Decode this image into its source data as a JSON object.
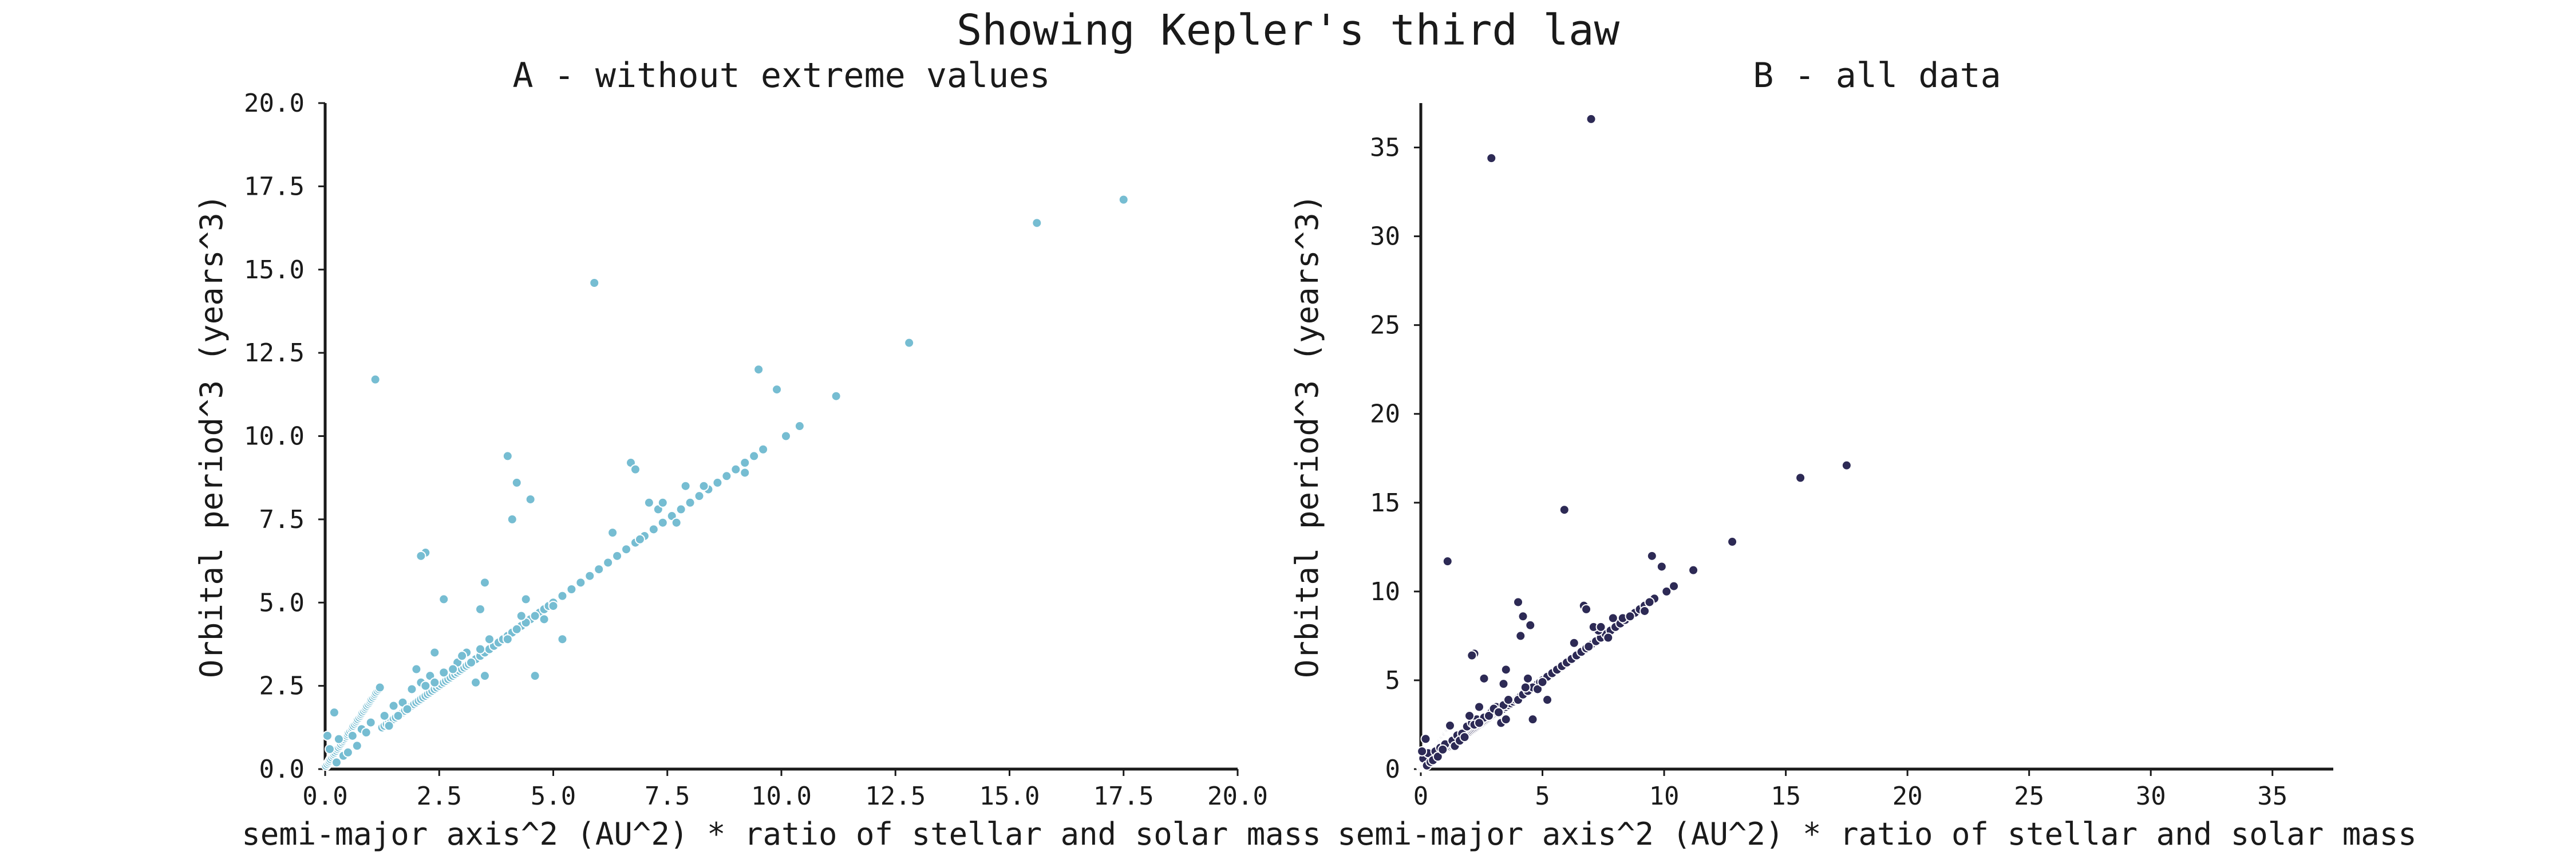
{
  "figure": {
    "title": "Showing Kepler's third law"
  },
  "chart_data": [
    {
      "type": "scatter",
      "title": "A - without extreme values",
      "xlabel": "semi-major axis^2 (AU^2) * ratio of stellar and solar mass",
      "ylabel": "Orbital period^3 (years^3)",
      "xlim": [
        0,
        20
      ],
      "ylim": [
        0,
        20
      ],
      "xticks": [
        "0.0",
        "2.5",
        "5.0",
        "7.5",
        "10.0",
        "12.5",
        "15.0",
        "17.5",
        "20.0"
      ],
      "yticks": [
        "0.0",
        "2.5",
        "5.0",
        "7.5",
        "10.0",
        "12.5",
        "15.0",
        "17.5",
        "20.0"
      ],
      "grid": false,
      "color": "#76bdd2",
      "series": [
        {
          "x": [
            0.02,
            0.05,
            0.08,
            0.1,
            0.12,
            0.15,
            0.18,
            0.2,
            0.22,
            0.25,
            0.28,
            0.3,
            0.33,
            0.35,
            0.38,
            0.4,
            0.42,
            0.45,
            0.48,
            0.5,
            0.52,
            0.55,
            0.58,
            0.6,
            0.62,
            0.65,
            0.68,
            0.7,
            0.72,
            0.75,
            0.78,
            0.8,
            0.82,
            0.85,
            0.88,
            0.9,
            0.92,
            0.95,
            0.98,
            1.0,
            1.02,
            1.05,
            1.08,
            1.1,
            1.12,
            1.15,
            1.18,
            1.2,
            1.25,
            1.3,
            1.35,
            1.4,
            1.45,
            1.5,
            1.55,
            1.6,
            1.65,
            1.7,
            1.75,
            1.8,
            1.85,
            1.9,
            1.95,
            2.0,
            2.05,
            2.1,
            2.15,
            2.2,
            2.25,
            2.3,
            2.35,
            2.4,
            2.45,
            2.5,
            2.55,
            2.6,
            2.65,
            2.7,
            2.75,
            2.8,
            2.85,
            2.9,
            2.95,
            3.0,
            3.05,
            3.1,
            3.15,
            3.2,
            3.3,
            3.4,
            3.5,
            3.6,
            3.7,
            3.8,
            3.9,
            4.0,
            4.1,
            4.2,
            4.3,
            4.4,
            4.5,
            4.6,
            4.7,
            4.8,
            4.9,
            5.0,
            5.2,
            5.4,
            5.6,
            5.8,
            6.0,
            6.2,
            6.4,
            6.6,
            6.8,
            7.0,
            7.2,
            7.4,
            7.6,
            7.8,
            8.0,
            8.2,
            8.4,
            8.6,
            8.8,
            9.0,
            9.2,
            9.4,
            9.6,
            0.1,
            0.3,
            0.6,
            0.8,
            1.0,
            1.3,
            1.5,
            1.7,
            1.9,
            2.1,
            2.3,
            2.6,
            2.9,
            3.1,
            3.4,
            3.6,
            0.05,
            0.25,
            0.2,
            0.4,
            0.5,
            0.7,
            0.9,
            1.4,
            1.6,
            1.8,
            2.0,
            2.2,
            2.4,
            2.8,
            3.0,
            3.2,
            3.3,
            3.5,
            4.0,
            4.2,
            4.4,
            4.6,
            4.8,
            5.2,
            5.0,
            6.3,
            6.9,
            7.3,
            7.7,
            9.2,
            2.2,
            2.1,
            2.6,
            2.4,
            3.5,
            3.4,
            1.1,
            4.0,
            4.1,
            4.2,
            4.5,
            4.4,
            4.3,
            4.6,
            6.7,
            6.8,
            7.1,
            5.9,
            7.4,
            7.9,
            8.3,
            8.6,
            9.5,
            9.4,
            9.9,
            10.1,
            10.4,
            11.2,
            12.8,
            15.6,
            17.5
          ],
          "y": [
            0.1,
            0.15,
            0.2,
            0.25,
            0.3,
            0.35,
            0.4,
            0.45,
            0.5,
            0.55,
            0.6,
            0.65,
            0.7,
            0.75,
            0.8,
            0.85,
            0.9,
            0.95,
            1.0,
            1.05,
            1.1,
            1.15,
            1.2,
            1.25,
            1.3,
            1.35,
            1.4,
            1.45,
            1.5,
            1.55,
            1.6,
            1.65,
            1.7,
            1.75,
            1.8,
            1.85,
            1.9,
            1.95,
            2.0,
            2.05,
            2.1,
            2.15,
            2.2,
            2.25,
            2.3,
            2.35,
            2.4,
            2.45,
            1.25,
            1.3,
            1.35,
            1.4,
            1.45,
            1.5,
            1.55,
            1.6,
            1.65,
            1.7,
            1.75,
            1.8,
            1.85,
            1.9,
            1.95,
            2.0,
            2.05,
            2.1,
            2.15,
            2.2,
            2.25,
            2.3,
            2.35,
            2.4,
            2.45,
            2.5,
            2.55,
            2.6,
            2.65,
            2.7,
            2.75,
            2.8,
            2.85,
            2.9,
            2.95,
            3.0,
            3.05,
            3.1,
            3.15,
            3.2,
            3.3,
            3.4,
            3.5,
            3.6,
            3.7,
            3.8,
            3.9,
            4.0,
            4.1,
            4.2,
            4.3,
            4.4,
            4.5,
            4.6,
            4.7,
            4.8,
            4.9,
            5.0,
            5.2,
            5.4,
            5.6,
            5.8,
            6.0,
            6.2,
            6.4,
            6.6,
            6.8,
            7.0,
            7.2,
            7.4,
            7.6,
            7.8,
            8.0,
            8.2,
            8.4,
            8.6,
            8.8,
            9.0,
            9.2,
            9.4,
            9.6,
            0.6,
            0.9,
            1.0,
            1.2,
            1.4,
            1.6,
            1.9,
            2.0,
            2.4,
            2.6,
            2.8,
            2.9,
            3.2,
            3.5,
            3.6,
            3.9,
            1.0,
            0.2,
            1.7,
            0.4,
            0.5,
            0.7,
            1.1,
            1.3,
            1.6,
            1.8,
            3.0,
            2.5,
            2.6,
            3.0,
            3.4,
            3.2,
            2.6,
            2.8,
            3.9,
            4.2,
            4.4,
            4.6,
            4.5,
            3.9,
            4.9,
            7.1,
            6.9,
            7.8,
            7.4,
            8.9,
            6.5,
            6.4,
            5.1,
            3.5,
            5.6,
            4.8,
            11.7,
            9.4,
            7.5,
            8.6,
            8.1,
            5.1,
            4.6,
            2.8,
            9.2,
            9.0,
            8.0,
            14.6,
            8.0,
            8.5,
            8.5,
            8.6,
            12.0,
            9.4,
            11.4,
            10.0,
            10.3,
            11.2,
            12.8,
            16.4,
            17.1
          ]
        }
      ]
    },
    {
      "type": "scatter",
      "title": "B - all data",
      "xlabel": "semi-major axis^2 (AU^2) * ratio of stellar and solar mass",
      "ylabel": "Orbital period^3 (years^3)",
      "xlim": [
        0,
        37.5
      ],
      "ylim": [
        0,
        37.5
      ],
      "xticks": [
        "0",
        "5",
        "10",
        "15",
        "20",
        "25",
        "30",
        "35"
      ],
      "yticks": [
        "0",
        "5",
        "10",
        "15",
        "20",
        "25",
        "30",
        "35"
      ],
      "grid": false,
      "color": "#2d2a55",
      "series": [
        {
          "x": [
            0.02,
            0.05,
            0.08,
            0.1,
            0.12,
            0.15,
            0.18,
            0.2,
            0.22,
            0.25,
            0.28,
            0.3,
            0.33,
            0.35,
            0.38,
            0.4,
            0.42,
            0.45,
            0.48,
            0.5,
            0.52,
            0.55,
            0.58,
            0.6,
            0.62,
            0.65,
            0.68,
            0.7,
            0.72,
            0.75,
            0.78,
            0.8,
            0.82,
            0.85,
            0.88,
            0.9,
            0.92,
            0.95,
            0.98,
            1.0,
            1.02,
            1.05,
            1.08,
            1.1,
            1.12,
            1.15,
            1.18,
            1.2,
            1.25,
            1.3,
            1.35,
            1.4,
            1.45,
            1.5,
            1.55,
            1.6,
            1.65,
            1.7,
            1.75,
            1.8,
            1.85,
            1.9,
            1.95,
            2.0,
            2.05,
            2.1,
            2.15,
            2.2,
            2.25,
            2.3,
            2.35,
            2.4,
            2.45,
            2.5,
            2.55,
            2.6,
            2.65,
            2.7,
            2.75,
            2.8,
            2.85,
            2.9,
            2.95,
            3.0,
            3.05,
            3.1,
            3.15,
            3.2,
            3.3,
            3.4,
            3.5,
            3.6,
            3.7,
            3.8,
            3.9,
            4.0,
            4.1,
            4.2,
            4.3,
            4.4,
            4.5,
            4.6,
            4.7,
            4.8,
            4.9,
            5.0,
            5.2,
            5.4,
            5.6,
            5.8,
            6.0,
            6.2,
            6.4,
            6.6,
            6.8,
            7.0,
            7.2,
            7.4,
            7.6,
            7.8,
            8.0,
            8.2,
            8.4,
            8.6,
            8.8,
            9.0,
            9.2,
            9.4,
            9.6,
            0.1,
            0.3,
            0.6,
            0.8,
            1.0,
            1.3,
            1.5,
            1.7,
            1.9,
            2.1,
            2.3,
            2.6,
            2.9,
            3.1,
            3.4,
            3.6,
            0.05,
            0.25,
            0.2,
            0.4,
            0.5,
            0.7,
            0.9,
            1.4,
            1.6,
            1.8,
            2.0,
            2.2,
            2.4,
            2.8,
            3.0,
            3.2,
            3.3,
            3.5,
            4.0,
            4.2,
            4.4,
            4.6,
            4.8,
            5.2,
            5.0,
            6.3,
            6.9,
            7.3,
            7.7,
            9.2,
            2.2,
            2.1,
            2.6,
            2.4,
            3.5,
            3.4,
            1.1,
            4.0,
            4.1,
            4.2,
            4.5,
            4.4,
            4.3,
            4.6,
            6.7,
            6.8,
            7.1,
            5.9,
            7.4,
            7.9,
            8.3,
            8.6,
            9.5,
            9.4,
            9.9,
            10.1,
            10.4,
            11.2,
            12.8,
            15.6,
            17.5,
            2.9,
            7.0
          ],
          "y": [
            0.1,
            0.15,
            0.2,
            0.25,
            0.3,
            0.35,
            0.4,
            0.45,
            0.5,
            0.55,
            0.6,
            0.65,
            0.7,
            0.75,
            0.8,
            0.85,
            0.9,
            0.95,
            1.0,
            1.05,
            1.1,
            1.15,
            1.2,
            1.25,
            1.3,
            1.35,
            1.4,
            1.45,
            1.5,
            1.55,
            1.6,
            1.65,
            1.7,
            1.75,
            1.8,
            1.85,
            1.9,
            1.95,
            2.0,
            2.05,
            2.1,
            2.15,
            2.2,
            2.25,
            2.3,
            2.35,
            2.4,
            2.45,
            1.25,
            1.3,
            1.35,
            1.4,
            1.45,
            1.5,
            1.55,
            1.6,
            1.65,
            1.7,
            1.75,
            1.8,
            1.85,
            1.9,
            1.95,
            2.0,
            2.05,
            2.1,
            2.15,
            2.2,
            2.25,
            2.3,
            2.35,
            2.4,
            2.45,
            2.5,
            2.55,
            2.6,
            2.65,
            2.7,
            2.75,
            2.8,
            2.85,
            2.9,
            2.95,
            3.0,
            3.05,
            3.1,
            3.15,
            3.2,
            3.3,
            3.4,
            3.5,
            3.6,
            3.7,
            3.8,
            3.9,
            4.0,
            4.1,
            4.2,
            4.3,
            4.4,
            4.5,
            4.6,
            4.7,
            4.8,
            4.9,
            5.0,
            5.2,
            5.4,
            5.6,
            5.8,
            6.0,
            6.2,
            6.4,
            6.6,
            6.8,
            7.0,
            7.2,
            7.4,
            7.6,
            7.8,
            8.0,
            8.2,
            8.4,
            8.6,
            8.8,
            9.0,
            9.2,
            9.4,
            9.6,
            0.6,
            0.9,
            1.0,
            1.2,
            1.4,
            1.6,
            1.9,
            2.0,
            2.4,
            2.6,
            2.8,
            2.9,
            3.2,
            3.5,
            3.6,
            3.9,
            1.0,
            0.2,
            1.7,
            0.4,
            0.5,
            0.7,
            1.1,
            1.3,
            1.6,
            1.8,
            3.0,
            2.5,
            2.6,
            3.0,
            3.4,
            3.2,
            2.6,
            2.8,
            3.9,
            4.2,
            4.4,
            4.6,
            4.5,
            3.9,
            4.9,
            7.1,
            6.9,
            7.8,
            7.4,
            8.9,
            6.5,
            6.4,
            5.1,
            3.5,
            5.6,
            4.8,
            11.7,
            9.4,
            7.5,
            8.6,
            8.1,
            5.1,
            4.6,
            2.8,
            9.2,
            9.0,
            8.0,
            14.6,
            8.0,
            8.5,
            8.5,
            8.6,
            12.0,
            9.4,
            11.4,
            10.0,
            10.3,
            11.2,
            12.8,
            16.4,
            17.1,
            34.4,
            36.6
          ]
        }
      ]
    }
  ]
}
